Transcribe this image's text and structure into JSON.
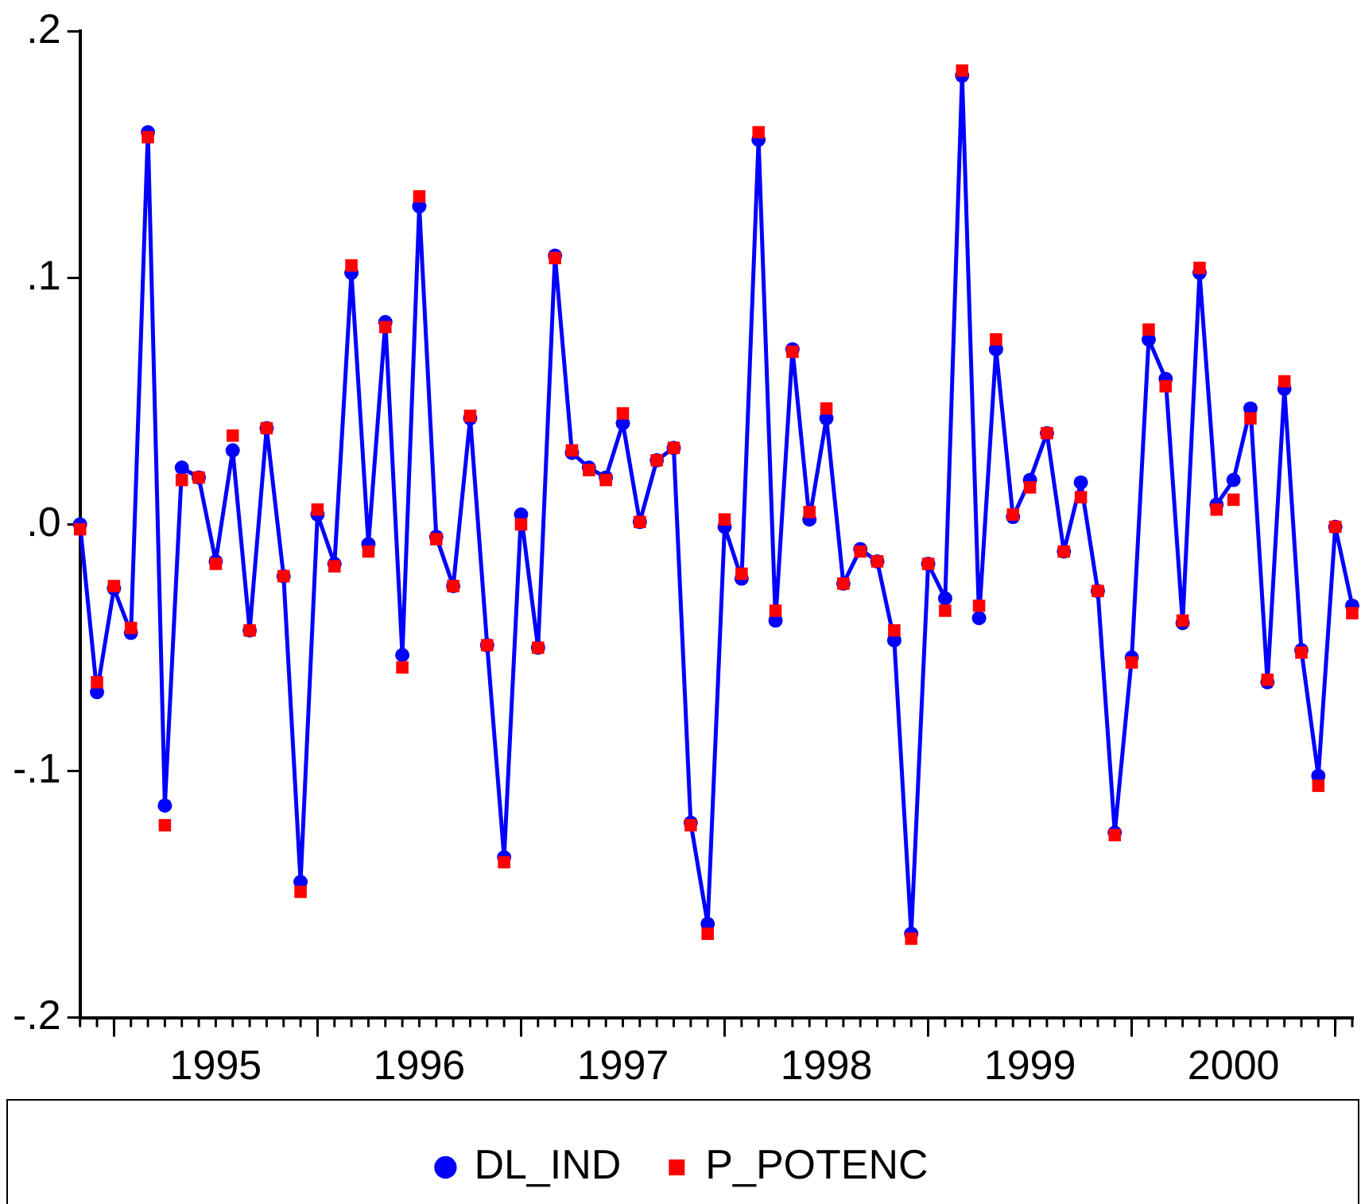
{
  "chart_data": {
    "type": "line",
    "x": [
      "1994-11",
      "1994-12",
      "1995-01",
      "1995-02",
      "1995-03",
      "1995-04",
      "1995-05",
      "1995-06",
      "1995-07",
      "1995-08",
      "1995-09",
      "1995-10",
      "1995-11",
      "1995-12",
      "1996-01",
      "1996-02",
      "1996-03",
      "1996-04",
      "1996-05",
      "1996-06",
      "1996-07",
      "1996-08",
      "1996-09",
      "1996-10",
      "1996-11",
      "1996-12",
      "1997-01",
      "1997-02",
      "1997-03",
      "1997-04",
      "1997-05",
      "1997-06",
      "1997-07",
      "1997-08",
      "1997-09",
      "1997-10",
      "1997-11",
      "1997-12",
      "1998-01",
      "1998-02",
      "1998-03",
      "1998-04",
      "1998-05",
      "1998-06",
      "1998-07",
      "1998-08",
      "1998-09",
      "1998-10",
      "1998-11",
      "1998-12",
      "1999-01",
      "1999-02",
      "1999-03",
      "1999-04",
      "1999-05",
      "1999-06",
      "1999-07",
      "1999-08",
      "1999-09",
      "1999-10",
      "1999-11",
      "1999-12",
      "2000-01",
      "2000-02",
      "2000-03",
      "2000-04",
      "2000-05",
      "2000-06",
      "2000-07",
      "2000-08",
      "2000-09",
      "2000-10",
      "2000-11",
      "2000-12",
      "2001-01",
      "2001-02"
    ],
    "series": [
      {
        "name": "DL_IND",
        "marker": "circle",
        "color": "#0000ff",
        "values": [
          0.0,
          -0.068,
          -0.026,
          -0.044,
          0.159,
          -0.114,
          0.023,
          0.019,
          -0.015,
          0.03,
          -0.043,
          0.039,
          -0.021,
          -0.145,
          0.004,
          -0.016,
          0.102,
          -0.008,
          0.082,
          -0.053,
          0.129,
          -0.005,
          -0.025,
          0.043,
          -0.049,
          -0.135,
          0.004,
          -0.05,
          0.109,
          0.029,
          0.023,
          0.019,
          0.041,
          0.001,
          0.026,
          0.031,
          -0.121,
          -0.162,
          -0.001,
          -0.022,
          0.156,
          -0.039,
          0.071,
          0.002,
          0.043,
          -0.024,
          -0.01,
          -0.015,
          -0.047,
          -0.166,
          -0.016,
          -0.03,
          0.182,
          -0.038,
          0.071,
          0.003,
          0.018,
          0.037,
          -0.011,
          0.017,
          -0.027,
          -0.125,
          -0.054,
          0.075,
          0.059,
          -0.04,
          0.102,
          0.008,
          0.018,
          0.047,
          -0.064,
          0.055,
          -0.051,
          -0.102,
          -0.001,
          -0.033
        ]
      },
      {
        "name": "P_POTENC",
        "type": "scatter",
        "marker": "square",
        "color": "#ff0000",
        "values": [
          -0.002,
          -0.064,
          -0.025,
          -0.042,
          0.157,
          -0.122,
          0.018,
          0.019,
          -0.016,
          0.036,
          -0.043,
          0.039,
          -0.021,
          -0.149,
          0.006,
          -0.017,
          0.105,
          -0.011,
          0.08,
          -0.058,
          0.133,
          -0.006,
          -0.025,
          0.044,
          -0.049,
          -0.137,
          0.0,
          -0.05,
          0.108,
          0.03,
          0.022,
          0.018,
          0.045,
          0.001,
          0.026,
          0.031,
          -0.122,
          -0.166,
          0.002,
          -0.02,
          0.159,
          -0.035,
          0.07,
          0.005,
          0.047,
          -0.024,
          -0.011,
          -0.015,
          -0.043,
          -0.168,
          -0.016,
          -0.035,
          0.184,
          -0.033,
          0.075,
          0.004,
          0.015,
          0.037,
          -0.011,
          0.011,
          -0.027,
          -0.126,
          -0.056,
          0.079,
          0.056,
          -0.039,
          0.104,
          0.006,
          0.01,
          0.043,
          -0.063,
          0.058,
          -0.052,
          -0.106,
          -0.001,
          -0.036
        ]
      }
    ],
    "xlim": [
      "1994-11",
      "2001-02"
    ],
    "xticks": [
      {
        "value": "1995-01",
        "label": null
      },
      {
        "value": "1995-07",
        "label": "1995"
      },
      {
        "value": "1996-01",
        "label": null
      },
      {
        "value": "1996-07",
        "label": "1996"
      },
      {
        "value": "1997-01",
        "label": null
      },
      {
        "value": "1997-07",
        "label": "1997"
      },
      {
        "value": "1998-01",
        "label": null
      },
      {
        "value": "1998-07",
        "label": "1998"
      },
      {
        "value": "1999-01",
        "label": null
      },
      {
        "value": "1999-07",
        "label": "1999"
      },
      {
        "value": "2000-01",
        "label": null
      },
      {
        "value": "2000-07",
        "label": "2000"
      },
      {
        "value": "2001-01",
        "label": null
      }
    ],
    "ylim": [
      -0.2,
      0.2
    ],
    "yticks": [
      {
        "value": -0.2,
        "label": "-.2"
      },
      {
        "value": -0.1,
        "label": "-.1"
      },
      {
        "value": 0,
        "label": ".0"
      },
      {
        "value": 0.1,
        "label": ".1"
      },
      {
        "value": 0.2,
        "label": ".2"
      }
    ],
    "grid": false,
    "legend": "bottom"
  }
}
